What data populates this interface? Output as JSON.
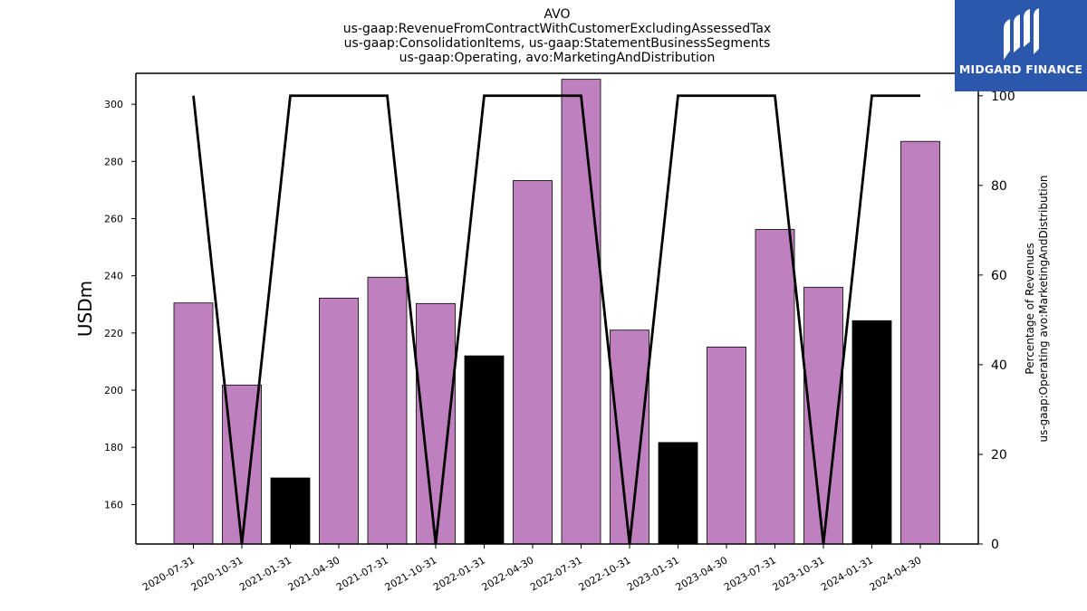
{
  "header": {
    "title_lines": [
      "AVO",
      "us-gaap:RevenueFromContractWithCustomerExcludingAssessedTax",
      "us-gaap:ConsolidationItems, us-gaap:StatementBusinessSegments",
      "us-gaap:Operating, avo:MarketingAndDistribution"
    ]
  },
  "logo": {
    "text": "MIDGARD FINANCE",
    "icon": "midgard-logo-icon",
    "color": "#2b58ad"
  },
  "chart_data": {
    "type": "bar",
    "categories": [
      "2020-07-31",
      "2020-10-31",
      "2021-01-31",
      "2021-04-30",
      "2021-07-31",
      "2021-10-31",
      "2022-01-31",
      "2022-04-30",
      "2022-07-31",
      "2022-10-31",
      "2023-01-31",
      "2023-04-30",
      "2023-07-31",
      "2023-10-31",
      "2024-01-31",
      "2024-04-30"
    ],
    "series": [
      {
        "axis": "left",
        "values": [
          230.5,
          201.8,
          169.3,
          232.2,
          239.5,
          230.3,
          212.0,
          273.3,
          308.7,
          221.0,
          181.7,
          215.1,
          256.2,
          236.0,
          224.3,
          287.0
        ],
        "bar_colors": [
          "#bf80bf",
          "#bf80bf",
          "#000000",
          "#bf80bf",
          "#bf80bf",
          "#bf80bf",
          "#000000",
          "#bf80bf",
          "#bf80bf",
          "#bf80bf",
          "#000000",
          "#bf80bf",
          "#bf80bf",
          "#bf80bf",
          "#000000",
          "#bf80bf"
        ]
      },
      {
        "axis": "right",
        "type": "line",
        "color": "#000000",
        "values": [
          100,
          0,
          100,
          100,
          100,
          0,
          100,
          100,
          100,
          0,
          100,
          100,
          100,
          0,
          100,
          100
        ]
      }
    ],
    "ylabel": "USDm",
    "ylabel_right_lines": [
      "Percentage of Revenues",
      "us-gaap:Operating avo:MarketingAndDistribution"
    ],
    "ylim": [
      146.2,
      310.8
    ],
    "ylim_right": [
      0,
      105
    ],
    "yticks": [
      160,
      180,
      200,
      220,
      240,
      260,
      280,
      300
    ],
    "yticks_right": [
      0,
      20,
      40,
      60,
      80,
      100
    ],
    "grid": false,
    "legend": "none"
  }
}
